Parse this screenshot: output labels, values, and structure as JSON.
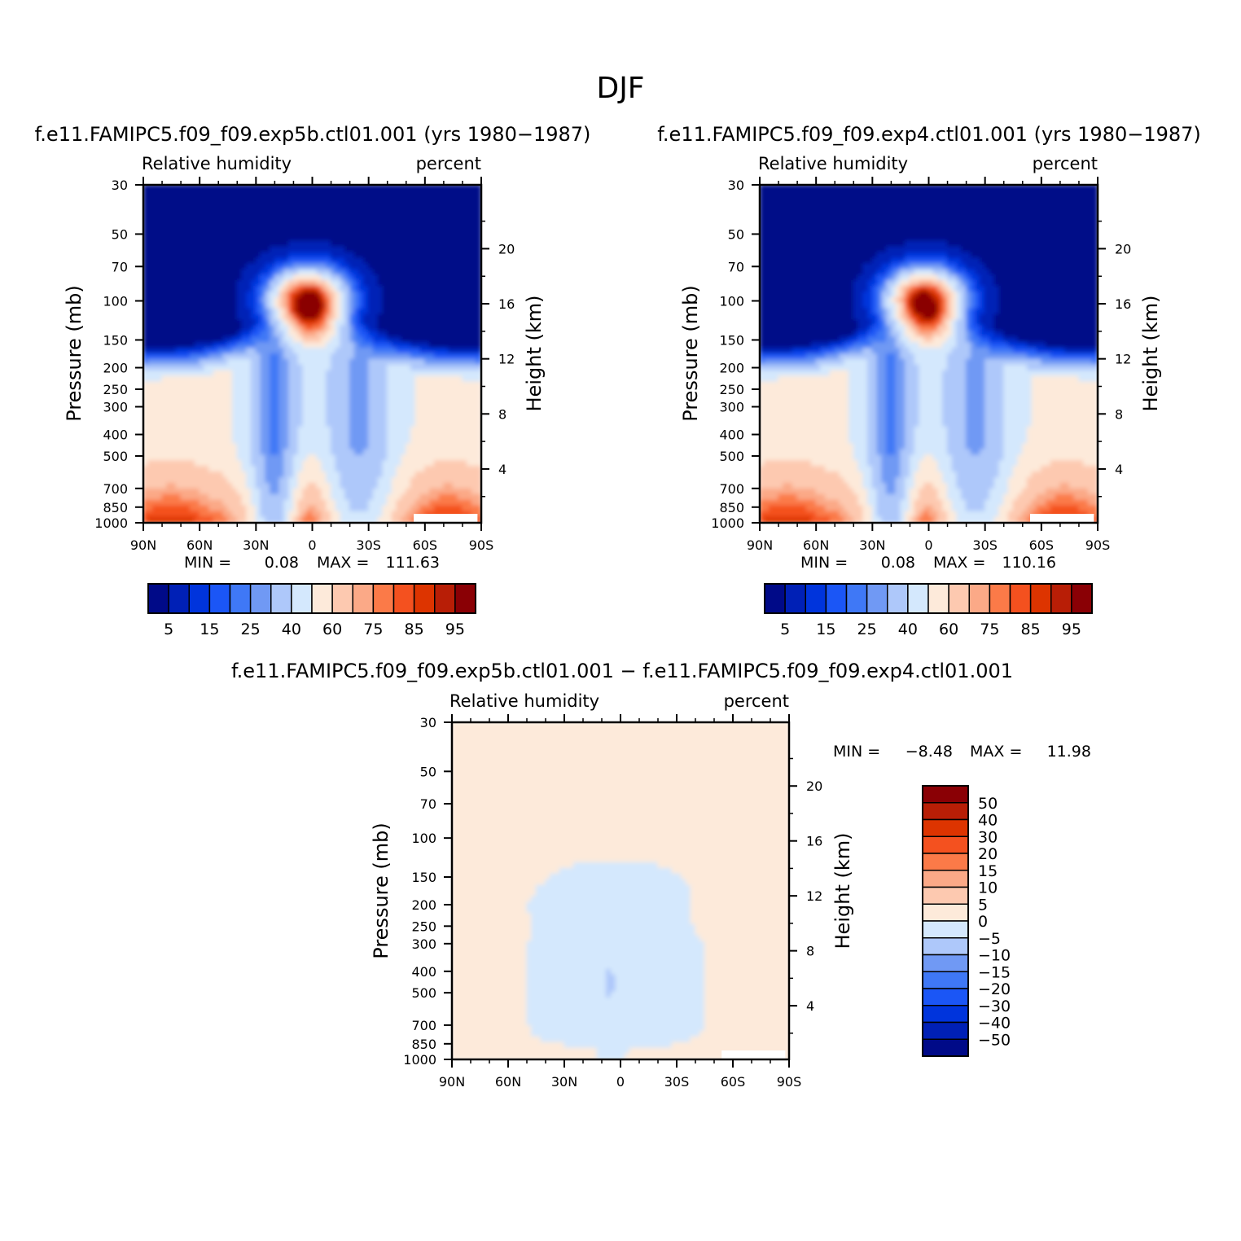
{
  "figure": {
    "title": "DJF",
    "diff_title": "f.e11.FAMIPC5.f09_f09.exp5b.ctl01.001 − f.e11.FAMIPC5.f09_f09.exp4.ctl01.001"
  },
  "colors": {
    "full": [
      "#000a88",
      "#0020b6",
      "#0034dc",
      "#1b56f6",
      "#3f78f6",
      "#7099f4",
      "#aec8fa",
      "#d4e8fd",
      "#fdeada",
      "#fdc9b0",
      "#fba987",
      "#fb7a48",
      "#f4511f",
      "#dd3400",
      "#b81e06",
      "#8a0005"
    ],
    "diff": [
      "#000a88",
      "#0020b6",
      "#0034dc",
      "#1b56f6",
      "#3f78f6",
      "#7099f4",
      "#aec8fa",
      "#d4e8fd",
      "#fdeada",
      "#fdc9b0",
      "#fba987",
      "#fb7a48",
      "#f4511f",
      "#dd3400",
      "#b81e06",
      "#8a0005"
    ]
  },
  "chart_data": [
    {
      "id": "panel-exp5b",
      "type": "heatmap",
      "title": "f.e11.FAMIPC5.f09_f09.exp5b.ctl01.001 (yrs 1980−1987)",
      "left_string": "Relative humidity",
      "right_string": "percent",
      "ylabel": "Pressure (mb)",
      "y2label": "Height (km)",
      "xlim": [
        90,
        -90
      ],
      "ylim": [
        1000,
        30
      ],
      "x_ticks": [
        {
          "v": 90,
          "l": "90N"
        },
        {
          "v": 60,
          "l": "60N"
        },
        {
          "v": 30,
          "l": "30N"
        },
        {
          "v": 0,
          "l": "0"
        },
        {
          "v": -30,
          "l": "30S"
        },
        {
          "v": -60,
          "l": "60S"
        },
        {
          "v": -90,
          "l": "90S"
        }
      ],
      "y_ticks": [
        30,
        50,
        70,
        100,
        150,
        200,
        250,
        300,
        400,
        500,
        700,
        850,
        1000
      ],
      "y2_ticks": [
        20,
        16,
        12,
        8,
        4
      ],
      "stats": {
        "min_label": "MIN =",
        "min": "0.08",
        "max_label": "MAX =",
        "max": "111.63"
      },
      "levels": [
        5,
        10,
        15,
        20,
        25,
        30,
        40,
        50,
        60,
        70,
        75,
        80,
        85,
        90,
        95
      ],
      "colorbar_labels": [
        "5",
        "15",
        "25",
        "40",
        "60",
        "75",
        "85",
        "95"
      ]
    },
    {
      "id": "panel-exp4",
      "type": "heatmap",
      "title": "f.e11.FAMIPC5.f09_f09.exp4.ctl01.001 (yrs 1980−1987)",
      "left_string": "Relative humidity",
      "right_string": "percent",
      "ylabel": "Pressure (mb)",
      "y2label": "Height (km)",
      "xlim": [
        90,
        -90
      ],
      "ylim": [
        1000,
        30
      ],
      "x_ticks": [
        {
          "v": 90,
          "l": "90N"
        },
        {
          "v": 60,
          "l": "60N"
        },
        {
          "v": 30,
          "l": "30N"
        },
        {
          "v": 0,
          "l": "0"
        },
        {
          "v": -30,
          "l": "30S"
        },
        {
          "v": -60,
          "l": "60S"
        },
        {
          "v": -90,
          "l": "90S"
        }
      ],
      "y_ticks": [
        30,
        50,
        70,
        100,
        150,
        200,
        250,
        300,
        400,
        500,
        700,
        850,
        1000
      ],
      "y2_ticks": [
        20,
        16,
        12,
        8,
        4
      ],
      "stats": {
        "min_label": "MIN =",
        "min": "0.08",
        "max_label": "MAX =",
        "max": "110.16"
      },
      "levels": [
        5,
        10,
        15,
        20,
        25,
        30,
        40,
        50,
        60,
        70,
        75,
        80,
        85,
        90,
        95
      ],
      "colorbar_labels": [
        "5",
        "15",
        "25",
        "40",
        "60",
        "75",
        "85",
        "95"
      ]
    },
    {
      "id": "panel-diff",
      "type": "heatmap",
      "title": "",
      "left_string": "Relative humidity",
      "right_string": "percent",
      "ylabel": "Pressure (mb)",
      "y2label": "Height (km)",
      "xlim": [
        90,
        -90
      ],
      "ylim": [
        1000,
        30
      ],
      "x_ticks": [
        {
          "v": 90,
          "l": "90N"
        },
        {
          "v": 60,
          "l": "60N"
        },
        {
          "v": 30,
          "l": "30N"
        },
        {
          "v": 0,
          "l": "0"
        },
        {
          "v": -30,
          "l": "30S"
        },
        {
          "v": -60,
          "l": "60S"
        },
        {
          "v": -90,
          "l": "90S"
        }
      ],
      "y_ticks": [
        30,
        50,
        70,
        100,
        150,
        200,
        250,
        300,
        400,
        500,
        700,
        850,
        1000
      ],
      "y2_ticks": [
        20,
        16,
        12,
        8,
        4
      ],
      "stats": {
        "min_label": "MIN =",
        "min": "−8.48",
        "max_label": "MAX =",
        "max": "11.98"
      },
      "levels": [
        -50,
        -40,
        -30,
        -20,
        -15,
        -10,
        -5,
        0,
        5,
        10,
        15,
        20,
        30,
        40,
        50
      ],
      "colorbar_labels": [
        "50",
        "40",
        "30",
        "20",
        "15",
        "10",
        "5",
        "0",
        "−5",
        "−10",
        "−15",
        "−20",
        "−30",
        "−40",
        "−50"
      ]
    }
  ]
}
